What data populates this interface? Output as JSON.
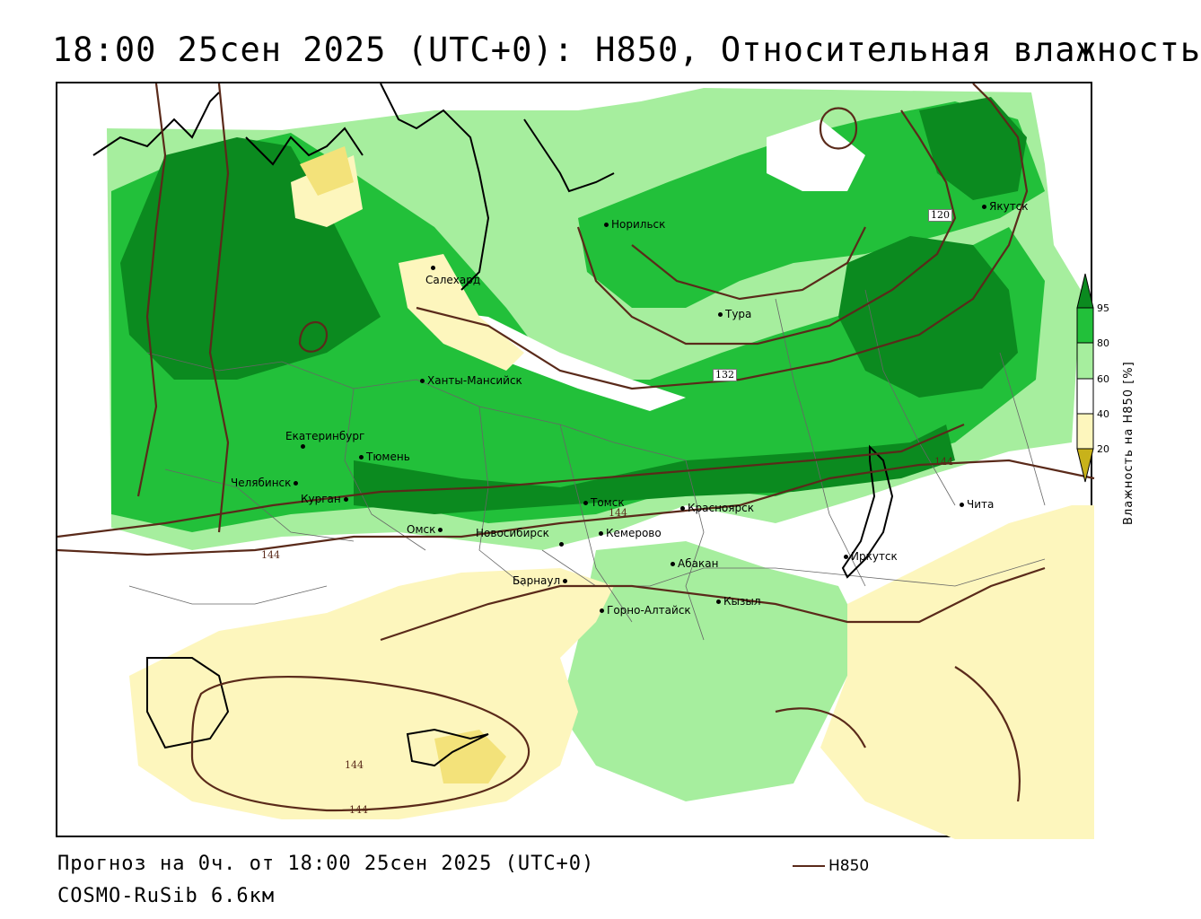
{
  "header": {
    "title": "18:00 25сен 2025 (UTC+0): H850, Относительная влажность"
  },
  "map": {
    "cities": [
      "Якутск",
      "Норильск",
      "Салехард",
      "Тура",
      "Ханты-Мансийск",
      "Екатеринбург",
      "Тюмень",
      "Челябинск",
      "Курган",
      "Омск",
      "Новосибирск",
      "Томск",
      "Кемерово",
      "Красноярск",
      "Чита",
      "Иркутск",
      "Абакан",
      "Барнаул",
      "Кызыл",
      "Горно-Алтайск"
    ],
    "contour_labels": [
      "120",
      "132",
      "144",
      "144",
      "144",
      "144",
      "144"
    ],
    "colors": {
      "h850_contour": "#5a2a1a",
      "coastline": "#000000",
      "green_95": "#0b8a1f",
      "green_80": "#22c03a",
      "green_60": "#a6ee9e",
      "yellow_40": "#fdf6bd",
      "yellow_20": "#f3e27a",
      "yellow_0": "#c8b21a"
    }
  },
  "legend": {
    "title": "Влажность на H850 [%]",
    "ticks": [
      "95",
      "80",
      "60",
      "40",
      "20"
    ]
  },
  "footer": {
    "forecast_line": "Прогноз на 0ч. от 18:00 25сен 2025 (UTC+0)",
    "model_line": "COSMO-RuSib 6.6км",
    "key_label": "H850"
  }
}
